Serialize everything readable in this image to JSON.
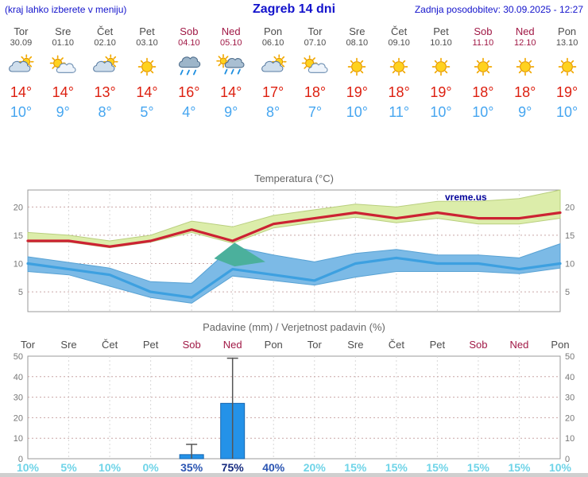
{
  "header": {
    "left_note": "(kraj lahko izberete v meniju)",
    "title": "Zagreb 14 dni",
    "last_update": "Zadnja posodobitev: 30.09.2025 - 12:27"
  },
  "days": [
    {
      "name": "Tor",
      "date": "30.09",
      "weekend": false,
      "icon": "cloud-sun",
      "tmax": "14°",
      "tmin": "10°"
    },
    {
      "name": "Sre",
      "date": "01.10",
      "weekend": false,
      "icon": "partly-cloudy",
      "tmax": "14°",
      "tmin": "9°"
    },
    {
      "name": "Čet",
      "date": "02.10",
      "weekend": false,
      "icon": "cloud-sun",
      "tmax": "13°",
      "tmin": "8°"
    },
    {
      "name": "Pet",
      "date": "03.10",
      "weekend": false,
      "icon": "sunny",
      "tmax": "14°",
      "tmin": "5°"
    },
    {
      "name": "Sob",
      "date": "04.10",
      "weekend": true,
      "icon": "rain",
      "tmax": "16°",
      "tmin": "4°"
    },
    {
      "name": "Ned",
      "date": "05.10",
      "weekend": true,
      "icon": "rain-sun",
      "tmax": "14°",
      "tmin": "9°"
    },
    {
      "name": "Pon",
      "date": "06.10",
      "weekend": false,
      "icon": "cloud-sun",
      "tmax": "17°",
      "tmin": "8°"
    },
    {
      "name": "Tor",
      "date": "07.10",
      "weekend": false,
      "icon": "partly-cloudy",
      "tmax": "18°",
      "tmin": "7°"
    },
    {
      "name": "Sre",
      "date": "08.10",
      "weekend": false,
      "icon": "sunny",
      "tmax": "19°",
      "tmin": "10°"
    },
    {
      "name": "Čet",
      "date": "09.10",
      "weekend": false,
      "icon": "sunny",
      "tmax": "18°",
      "tmin": "11°"
    },
    {
      "name": "Pet",
      "date": "10.10",
      "weekend": false,
      "icon": "sunny",
      "tmax": "19°",
      "tmin": "10°"
    },
    {
      "name": "Sob",
      "date": "11.10",
      "weekend": true,
      "icon": "sunny",
      "tmax": "18°",
      "tmin": "10°"
    },
    {
      "name": "Ned",
      "date": "12.10",
      "weekend": true,
      "icon": "sunny",
      "tmax": "18°",
      "tmin": "9°"
    },
    {
      "name": "Pon",
      "date": "13.10",
      "weekend": false,
      "icon": "sunny",
      "tmax": "19°",
      "tmin": "10°"
    }
  ],
  "chart_data": [
    {
      "type": "line",
      "title": "Temperatura (°C)",
      "x_labels": [
        "Tor 30.09",
        "Sre 01.10",
        "Čet 02.10",
        "Pet 03.10",
        "Sob 04.10",
        "Ned 05.10",
        "Pon 06.10",
        "Tor 07.10",
        "Sre 08.10",
        "Čet 09.10",
        "Pet 10.10",
        "Sob 11.10",
        "Ned 12.10",
        "Pon 13.10"
      ],
      "ylim": [
        1.5,
        23
      ],
      "yticks": [
        5,
        10,
        15,
        20
      ],
      "grid": true,
      "legend_position": "none",
      "watermark": "vreme.us",
      "series": [
        {
          "name": "temp-max",
          "color": "#cc2233",
          "values": [
            14,
            14,
            13,
            14,
            16,
            14,
            17,
            18,
            19,
            18,
            19,
            18,
            18,
            19
          ]
        },
        {
          "name": "temp-min",
          "color": "#3da0e0",
          "values": [
            10,
            9,
            8,
            5,
            4,
            9,
            8,
            7,
            10,
            11,
            10,
            10,
            9,
            10
          ]
        }
      ],
      "bands": [
        {
          "name": "max-spread-band",
          "color": "#dcedaa",
          "edge": "#b9cf7e",
          "top": [
            15.5,
            15,
            14,
            15,
            17.5,
            16.5,
            18.5,
            19.5,
            20.5,
            20,
            21,
            21,
            21.5,
            23
          ],
          "bottom": [
            13.8,
            13.8,
            12.8,
            13.8,
            15.5,
            13.6,
            16.3,
            17.3,
            18.2,
            17.2,
            18,
            17,
            17,
            18
          ]
        },
        {
          "name": "min-spread-band",
          "color": "#7cbae6",
          "edge": "#58a2d4",
          "top": [
            11.2,
            10.2,
            9.2,
            6.8,
            6.5,
            13,
            11.5,
            10.3,
            11.8,
            12.5,
            11.5,
            11.5,
            11,
            13.5
          ],
          "bottom": [
            8.6,
            8,
            6,
            4,
            3,
            7.8,
            7,
            6.2,
            7.6,
            8.6,
            8.6,
            8.6,
            8.2,
            9.2
          ]
        },
        {
          "name": "overlap-patch",
          "color": "#4bb09c",
          "points": [
            [
              4.55,
              10.9
            ],
            [
              5.05,
              13.7
            ],
            [
              5.8,
              10.3
            ],
            [
              5.05,
              9.5
            ]
          ]
        }
      ]
    },
    {
      "type": "bar",
      "title": "Padavine (mm) / Verjetnost padavin (%)",
      "categories": [
        "Tor",
        "Sre",
        "Čet",
        "Pet",
        "Sob",
        "Ned",
        "Pon",
        "Tor",
        "Sre",
        "Čet",
        "Pet",
        "Sob",
        "Ned",
        "Pon"
      ],
      "weekend": [
        false,
        false,
        false,
        false,
        true,
        true,
        false,
        false,
        false,
        false,
        false,
        true,
        true,
        false
      ],
      "values": [
        0,
        0,
        0,
        0,
        2,
        27,
        0,
        0,
        0,
        0,
        0,
        0,
        0,
        0
      ],
      "whiskers": [
        null,
        null,
        null,
        null,
        [
          0,
          7
        ],
        [
          0,
          49
        ],
        null,
        null,
        null,
        null,
        null,
        null,
        null,
        null
      ],
      "ylim": [
        0,
        50
      ],
      "yticks": [
        0,
        10,
        20,
        30,
        40,
        50
      ],
      "probabilities": [
        {
          "label": "10%",
          "level": "low"
        },
        {
          "label": "5%",
          "level": "low"
        },
        {
          "label": "10%",
          "level": "low"
        },
        {
          "label": "0%",
          "level": "low"
        },
        {
          "label": "35%",
          "level": "mid"
        },
        {
          "label": "75%",
          "level": "high"
        },
        {
          "label": "40%",
          "level": "mid"
        },
        {
          "label": "20%",
          "level": "low"
        },
        {
          "label": "15%",
          "level": "low"
        },
        {
          "label": "15%",
          "level": "low"
        },
        {
          "label": "15%",
          "level": "low"
        },
        {
          "label": "15%",
          "level": "low"
        },
        {
          "label": "15%",
          "level": "low"
        },
        {
          "label": "10%",
          "level": "low"
        }
      ]
    }
  ],
  "colors": {
    "header_blue": "#1313cc",
    "weekday_text": "#4d4d4d",
    "weekend_text": "#a01845",
    "temp_max": "#dd2010",
    "temp_min": "#46a6f0",
    "chart_title": "#666666",
    "axis_text": "#777777",
    "plot_border": "#999999",
    "grid_vertical": "#d9d9d9",
    "grid_horizontal": "#c9a6a6",
    "bar_fill": "#2492e8",
    "bar_edge": "#1566b0",
    "whisker": "#555555",
    "prob_low": "#6fd4e8",
    "prob_mid": "#2b55b2",
    "prob_high": "#15297e",
    "watermark": "#000099",
    "footer": "#cfcfcf"
  }
}
